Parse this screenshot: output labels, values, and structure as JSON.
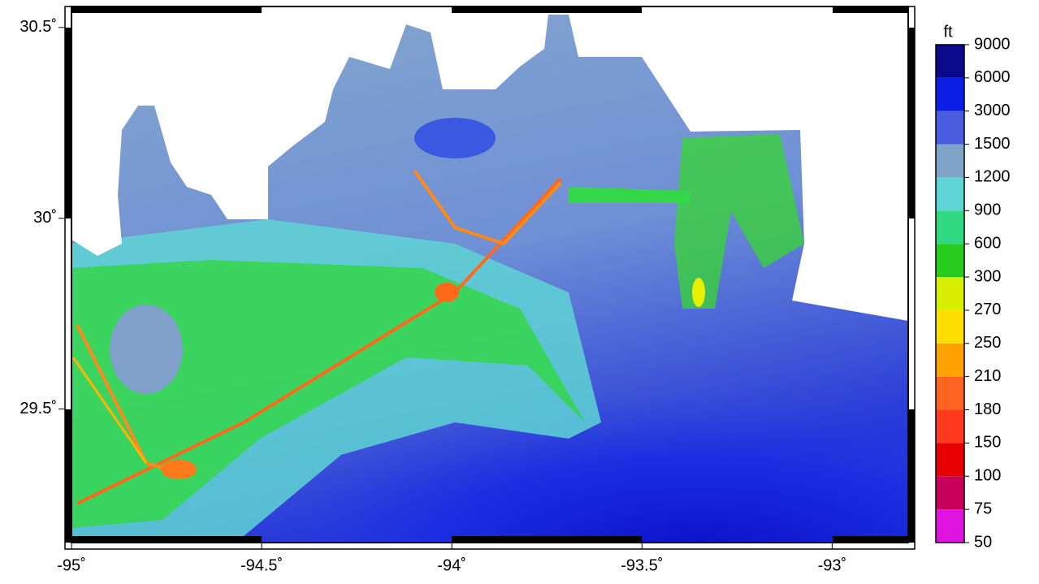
{
  "chart_data": {
    "type": "map",
    "xlim": [
      -95,
      -92.8
    ],
    "ylim": [
      29.15,
      30.555
    ],
    "xticks": [
      {
        "value": -95,
        "label": "-95˚"
      },
      {
        "value": -94.5,
        "label": "-94.5˚"
      },
      {
        "value": -94,
        "label": "-94˚"
      },
      {
        "value": -93.5,
        "label": "-93.5˚"
      },
      {
        "value": -93,
        "label": "-93˚"
      }
    ],
    "yticks": [
      {
        "value": 29.5,
        "label": "29.5˚"
      },
      {
        "value": 30,
        "label": "30˚"
      },
      {
        "value": 30.5,
        "label": "30.5˚"
      }
    ],
    "colorbar": {
      "unit": "ft",
      "levels": [
        50,
        75,
        100,
        150,
        180,
        210,
        250,
        270,
        300,
        600,
        900,
        1200,
        1500,
        3000,
        6000,
        9000
      ],
      "colors": [
        "#e012e0",
        "#c8005c",
        "#e60000",
        "#ff3a1e",
        "#ff6420",
        "#ffa200",
        "#ffde00",
        "#d8f000",
        "#28cc1c",
        "#30d882",
        "#5ed4d4",
        "#80a4c8",
        "#4a5ce0",
        "#0a1ee6",
        "#0a0a8a"
      ]
    }
  }
}
